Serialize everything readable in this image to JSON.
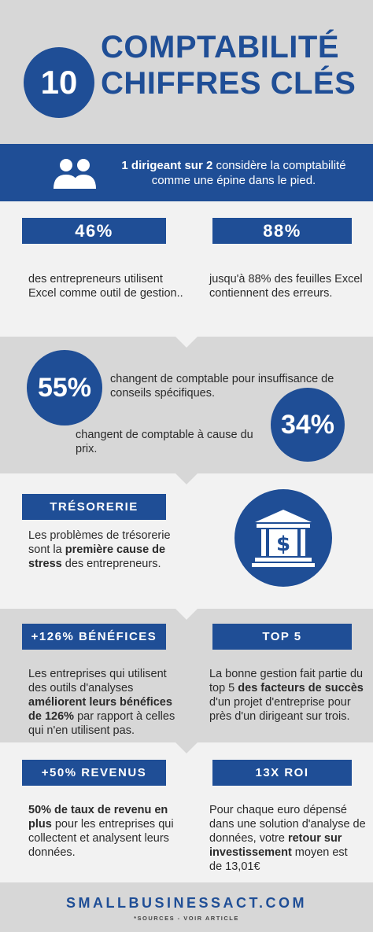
{
  "header": {
    "number": "10",
    "title_line1": "COMPTABILITÉ",
    "title_line2": "CHIFFRES CLÉS"
  },
  "banner": {
    "icon": "users-icon",
    "bold": "1 dirigeant sur 2",
    "text1": " considère la comptabilité",
    "text2": "comme une épine dans le pied."
  },
  "stats_row1": {
    "left": {
      "label": "46%",
      "text1": "des entrepreneurs utilisent",
      "text2": "Excel comme outil de gestion.."
    },
    "right": {
      "label": "88%",
      "text1": "jusqu'à 88% des feuilles Excel",
      "text2": "contiennent des erreurs."
    }
  },
  "circles": {
    "first": {
      "value": "55%",
      "text1": "changent de comptable pour insuffisance de",
      "text2": "conseils spécifiques."
    },
    "second": {
      "value": "34%",
      "text": "changent de comptable à cause du prix."
    }
  },
  "tresorerie": {
    "label": "TRÉSORERIE",
    "line1": "Les problèmes de trésorerie",
    "line2_pre": "sont la ",
    "line2_bold": "première cause de",
    "line3_bold": "stress",
    "line3_post": " des entrepreneurs.",
    "icon": "bank-dollar-icon"
  },
  "benefices": {
    "label": "+126% BÉNÉFICES",
    "line1": "Les entreprises qui utilisent",
    "line2": "des outils d'analyses",
    "line3_bold": "améliorent leurs bénéfices",
    "line4_bold": "de 126%",
    "line4_post": " par rapport à celles",
    "line5": "qui n'en utilisent pas."
  },
  "top5": {
    "label": "TOP 5",
    "line1": "La bonne gestion fait partie du",
    "line2_pre": "top 5 ",
    "line2_bold": "des facteurs de succès",
    "line3": "d'un projet d'entreprise pour",
    "line4": "près d'un dirigeant sur trois."
  },
  "revenus": {
    "label": "+50% REVENUS",
    "line1_bold": "50% de taux de revenu en",
    "line2_bold": "plus",
    "line2_post": " pour les entreprises qui",
    "line3": "collectent et analysent leurs",
    "line4": "données."
  },
  "roi": {
    "label": "13X ROI",
    "line1": "Pour chaque euro dépensé",
    "line2": "dans une solution d'analyse de",
    "line3_pre": "données, votre ",
    "line3_bold": "retour sur",
    "line4_bold": "investissement",
    "line4_post": " moyen est",
    "line5": "de 13,01€"
  },
  "footer": {
    "site": "SMALLBUSINESSACT.COM",
    "sources": "*SOURCES - VOIR ARTICLE"
  },
  "colors": {
    "primary": "#1f4e96",
    "gray": "#d7d7d7",
    "light": "#f2f2f2"
  }
}
